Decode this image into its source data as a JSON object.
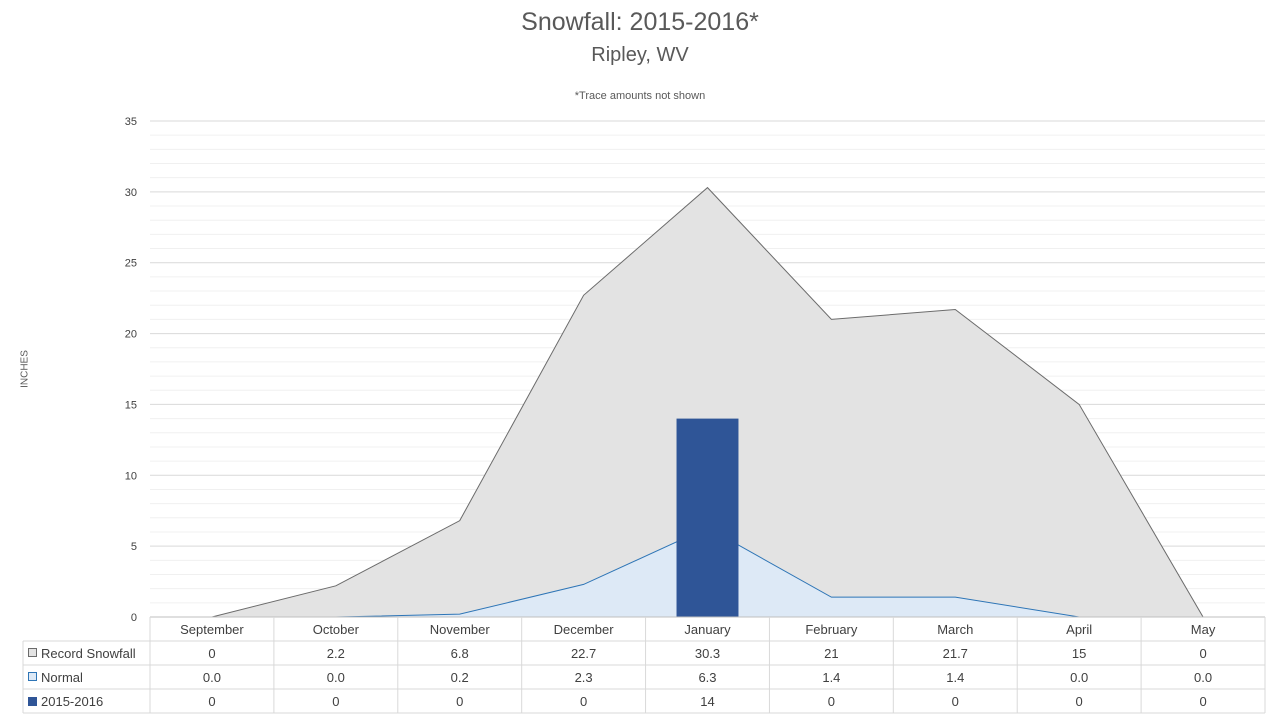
{
  "chart_data": {
    "type": "area",
    "title": "Snowfall: 2015-2016*",
    "subtitle": "Ripley, WV",
    "note": "*Trace amounts not shown",
    "ylabel": "INCHES",
    "ylim": [
      0,
      35
    ],
    "yticks": [
      0,
      5,
      10,
      15,
      20,
      25,
      30,
      35
    ],
    "grid": true,
    "categories": [
      "September",
      "October",
      "November",
      "December",
      "January",
      "February",
      "March",
      "April",
      "May"
    ],
    "series": [
      {
        "name": "Record Snowfall",
        "kind": "area",
        "values": [
          0,
          2.2,
          6.8,
          22.7,
          30.3,
          21,
          21.7,
          15,
          0
        ],
        "labels": [
          "0",
          "2.2",
          "6.8",
          "22.7",
          "30.3",
          "21",
          "21.7",
          "15",
          "0"
        ],
        "color": "#e3e3e3",
        "line": "#6b6b6b"
      },
      {
        "name": "Normal",
        "kind": "area",
        "values": [
          0.0,
          0.0,
          0.2,
          2.3,
          6.3,
          1.4,
          1.4,
          0.0,
          0.0
        ],
        "labels": [
          "0.0",
          "0.0",
          "0.2",
          "2.3",
          "6.3",
          "1.4",
          "1.4",
          "0.0",
          "0.0"
        ],
        "color": "#dde9f6",
        "line": "#2e75b6"
      },
      {
        "name": "2015-2016",
        "kind": "bar",
        "values": [
          0,
          0,
          0,
          0,
          14,
          0,
          0,
          0,
          0
        ],
        "labels": [
          "0",
          "0",
          "0",
          "0",
          "14",
          "0",
          "0",
          "0",
          "0"
        ],
        "color": "#2f5597"
      }
    ]
  }
}
